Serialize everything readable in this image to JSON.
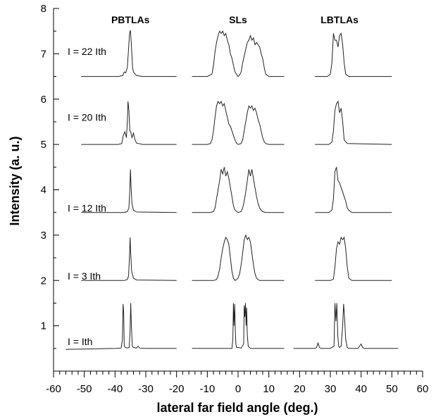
{
  "chart_data": {
    "type": "line",
    "xlabel": "lateral far field angle (deg.)",
    "ylabel": "Intensity (a. u.)",
    "xlim": [
      -60,
      60
    ],
    "ylim": [
      0,
      8
    ],
    "x_ticks": [
      -60,
      -50,
      -40,
      -30,
      -20,
      -10,
      0,
      10,
      20,
      30,
      40,
      50,
      60
    ],
    "y_ticks": [
      1,
      2,
      3,
      4,
      5,
      6,
      7,
      8
    ],
    "column_headers": [
      {
        "label": "PBTLAs",
        "x": -35
      },
      {
        "label": "SLs",
        "x": 0
      },
      {
        "label": "LBTLAs",
        "x": 33
      }
    ],
    "row_labels": [
      {
        "label": "I = 22 Ith",
        "y": 7.05
      },
      {
        "label": "I = 20 Ith",
        "y": 5.6
      },
      {
        "label": "I = 12 Ith",
        "y": 3.6
      },
      {
        "label": "I = 3 Ith",
        "y": 2.1
      },
      {
        "label": "I = Ith",
        "y": 0.65
      }
    ],
    "grid": false,
    "line_color": "#222222",
    "panels": [
      {
        "name": "PBTLAs I = 22 Ith",
        "x": [
          -51,
          -39,
          -37.5,
          -37,
          -36.5,
          -36,
          -35.6,
          -35.3,
          -35,
          -34.7,
          -34.3,
          -34,
          -33.6,
          -33,
          -31,
          -20
        ],
        "y": [
          6.5,
          6.5,
          6.52,
          6.6,
          6.58,
          6.7,
          7.1,
          7.45,
          7.52,
          7.2,
          6.7,
          6.6,
          6.56,
          6.52,
          6.5,
          6.5
        ]
      },
      {
        "name": "PBTLAs I = 20 Ith",
        "x": [
          -51,
          -39,
          -37.8,
          -37.3,
          -36.8,
          -36.3,
          -36,
          -35.8,
          -35.5,
          -35.2,
          -34.9,
          -34.5,
          -34,
          -33.5,
          -33,
          -31,
          -20
        ],
        "y": [
          5,
          5,
          5.02,
          5.2,
          5.28,
          5.15,
          5.5,
          5.95,
          5.75,
          5.3,
          5.28,
          5.15,
          5.25,
          5.1,
          5.03,
          5,
          5
        ]
      },
      {
        "name": "PBTLAs I = 12 Ith",
        "x": [
          -51,
          -37,
          -36,
          -35.5,
          -35.2,
          -35,
          -34.8,
          -34.5,
          -34,
          -33,
          -20
        ],
        "y": [
          3.5,
          3.5,
          3.52,
          3.6,
          4.0,
          4.45,
          4.1,
          3.7,
          3.55,
          3.51,
          3.5
        ]
      },
      {
        "name": "PBTLAs I = 3 Ith",
        "x": [
          -51,
          -37,
          -36,
          -35.6,
          -35.3,
          -35.1,
          -34.9,
          -34.6,
          -34,
          -33,
          -20
        ],
        "y": [
          2,
          2,
          2.02,
          2.1,
          2.55,
          2.95,
          2.6,
          2.2,
          2.05,
          2.01,
          2
        ]
      },
      {
        "name": "PBTLAs I = Ith",
        "x": [
          -56,
          -40,
          -38,
          -37.6,
          -37.4,
          -37.2,
          -37,
          -36.6,
          -36.2,
          -35.4,
          -35.1,
          -34.9,
          -34.7,
          -34.4,
          -34,
          -33,
          -32.5,
          -32,
          -30,
          -20
        ],
        "y": [
          0.48,
          0.5,
          0.51,
          0.7,
          1.48,
          1.3,
          0.55,
          0.52,
          0.51,
          0.52,
          0.9,
          1.5,
          1.0,
          0.55,
          0.52,
          0.51,
          0.55,
          0.51,
          0.5,
          0.5
        ]
      },
      {
        "name": "SLs I = 22 Ith",
        "x": [
          -15,
          -10,
          -8.5,
          -8,
          -7.5,
          -7,
          -6.5,
          -6,
          -5.5,
          -5,
          -4.5,
          -4,
          -3.5,
          -3,
          -2.5,
          -2,
          -1.5,
          -1,
          -0.5,
          0,
          0.5,
          1,
          1.5,
          2,
          2.5,
          3,
          3.5,
          4,
          4.5,
          5,
          5.5,
          6,
          6.5,
          7,
          7.5,
          8,
          8.5,
          9,
          10,
          15
        ],
        "y": [
          6.5,
          6.5,
          6.55,
          6.75,
          7.05,
          7.25,
          7.4,
          7.5,
          7.45,
          7.5,
          7.4,
          7.45,
          7.3,
          7.2,
          7.0,
          6.9,
          6.75,
          6.6,
          6.55,
          6.5,
          6.53,
          6.6,
          6.8,
          6.95,
          7.1,
          7.25,
          7.3,
          7.4,
          7.3,
          7.35,
          7.2,
          7.25,
          7.2,
          7.15,
          7.0,
          6.9,
          6.7,
          6.55,
          6.5,
          6.5
        ]
      },
      {
        "name": "SLs I = 20 Ith",
        "x": [
          -15,
          -10,
          -9,
          -8.5,
          -8,
          -7.5,
          -7,
          -6.5,
          -6,
          -5.5,
          -5,
          -4.5,
          -4,
          -3.5,
          -3,
          -2.5,
          -2,
          -1.5,
          -1,
          -0.5,
          0,
          1,
          1.5,
          2,
          2.5,
          3,
          3.5,
          4,
          4.5,
          5,
          5.5,
          6,
          6.5,
          7,
          7.5,
          8,
          8.5,
          9,
          10,
          15
        ],
        "y": [
          5,
          5,
          5.02,
          5.1,
          5.3,
          5.6,
          5.85,
          5.95,
          5.9,
          5.95,
          5.85,
          5.9,
          5.75,
          5.6,
          5.45,
          5.4,
          5.3,
          5.2,
          5.1,
          5.03,
          5,
          5.02,
          5.1,
          5.3,
          5.5,
          5.7,
          5.85,
          5.8,
          5.85,
          5.75,
          5.8,
          5.7,
          5.55,
          5.45,
          5.3,
          5.15,
          5.06,
          5.02,
          5,
          5
        ]
      },
      {
        "name": "SLs I = 12 Ith",
        "x": [
          -15,
          -9,
          -8,
          -7.5,
          -7,
          -6.5,
          -6,
          -5.5,
          -5,
          -4.5,
          -4,
          -3.5,
          -3,
          -2.5,
          -2,
          -1.5,
          -1,
          0,
          1,
          1.5,
          2,
          2.5,
          3,
          3.5,
          4,
          4.5,
          5,
          5.5,
          6,
          6.5,
          7,
          7.5,
          8,
          9,
          15
        ],
        "y": [
          3.5,
          3.5,
          3.52,
          3.6,
          3.8,
          4.0,
          4.2,
          4.45,
          4.35,
          4.5,
          4.3,
          4.4,
          4.25,
          4.05,
          3.85,
          3.65,
          3.55,
          3.5,
          3.52,
          3.6,
          3.75,
          3.95,
          4.2,
          4.45,
          4.3,
          4.45,
          4.25,
          4.05,
          3.85,
          3.7,
          3.6,
          3.55,
          3.52,
          3.5,
          3.5
        ]
      },
      {
        "name": "SLs I = 3 Ith",
        "x": [
          -15,
          -8,
          -7,
          -6.5,
          -6,
          -5.5,
          -5,
          -4.5,
          -4,
          -3.5,
          -3,
          -2.5,
          -2,
          -1.5,
          -1,
          -0.5,
          0,
          0.5,
          1,
          1.5,
          2,
          2.5,
          3,
          3.5,
          4,
          4.5,
          5,
          5.5,
          6,
          6.5,
          7,
          8,
          15
        ],
        "y": [
          2,
          2,
          2.02,
          2.1,
          2.25,
          2.5,
          2.7,
          2.85,
          2.95,
          2.9,
          2.8,
          2.5,
          2.2,
          2.05,
          2,
          2.02,
          2.05,
          2.15,
          2.35,
          2.6,
          2.9,
          3.0,
          2.9,
          2.95,
          2.85,
          2.6,
          2.35,
          2.15,
          2.05,
          2.02,
          2,
          2,
          2
        ]
      },
      {
        "name": "SLs I = Ith",
        "x": [
          -15,
          -2,
          -1.7,
          -1.5,
          -1.3,
          -1.1,
          -0.9,
          -0.7,
          -0.5,
          0,
          1,
          1.8,
          2,
          2.2,
          2.4,
          2.6,
          2.8,
          3,
          3.3,
          4,
          15
        ],
        "y": [
          0.5,
          0.5,
          0.7,
          1.5,
          1.0,
          1.48,
          0.9,
          0.6,
          0.52,
          0.52,
          0.51,
          0.6,
          1.45,
          1.2,
          1.5,
          1.0,
          1.4,
          0.8,
          0.55,
          0.5,
          0.5
        ]
      },
      {
        "name": "LBTLAs I = 22 Ith",
        "x": [
          25,
          29,
          30,
          30.5,
          31,
          31.5,
          32,
          32.5,
          33,
          33.5,
          34,
          34.5,
          35,
          36,
          50
        ],
        "y": [
          6.5,
          6.5,
          6.55,
          6.8,
          7.45,
          7.3,
          7.3,
          7.15,
          7.4,
          7.45,
          7.2,
          6.8,
          6.55,
          6.5,
          6.5
        ]
      },
      {
        "name": "LBTLAs I = 20 Ith",
        "x": [
          25,
          29.5,
          30.5,
          31,
          31.5,
          32,
          32.5,
          33,
          33.5,
          34,
          34.5,
          35.5,
          50
        ],
        "y": [
          5,
          5,
          5.05,
          5.3,
          5.75,
          5.9,
          5.95,
          5.7,
          5.8,
          5.5,
          5.1,
          5.02,
          5
        ]
      },
      {
        "name": "LBTLAs I = 12 Ith",
        "x": [
          25,
          29.5,
          30.5,
          31,
          31.5,
          32,
          32.5,
          33,
          33.5,
          34,
          34.5,
          35,
          35.5,
          36,
          37,
          50
        ],
        "y": [
          3.5,
          3.5,
          3.55,
          3.8,
          4.4,
          4.5,
          4.2,
          4.15,
          4.05,
          3.95,
          3.85,
          3.75,
          3.6,
          3.55,
          3.5,
          3.5
        ]
      },
      {
        "name": "LBTLAs I = 3 Ith",
        "x": [
          25,
          30,
          31,
          31.5,
          32,
          32.5,
          33,
          33.5,
          34,
          34.5,
          35,
          35.5,
          36,
          37,
          50
        ],
        "y": [
          2,
          2,
          2.03,
          2.3,
          2.7,
          2.85,
          2.8,
          2.95,
          2.9,
          2.95,
          2.7,
          2.3,
          2.05,
          2,
          2
        ]
      },
      {
        "name": "LBTLAs I = Ith",
        "x": [
          18,
          25,
          25.5,
          26,
          26.5,
          27,
          30,
          31.2,
          31.5,
          31.8,
          32.1,
          32.4,
          32.7,
          33,
          33.5,
          34,
          34.3,
          34.6,
          35,
          35.5,
          36,
          39,
          40,
          40.5,
          41,
          52
        ],
        "y": [
          0.5,
          0.5,
          0.52,
          0.62,
          0.52,
          0.5,
          0.5,
          0.55,
          1.5,
          1.1,
          1.5,
          0.8,
          0.55,
          0.52,
          0.55,
          1.0,
          1.48,
          1.2,
          0.7,
          0.52,
          0.5,
          0.5,
          0.6,
          0.52,
          0.5,
          0.5
        ]
      }
    ]
  }
}
